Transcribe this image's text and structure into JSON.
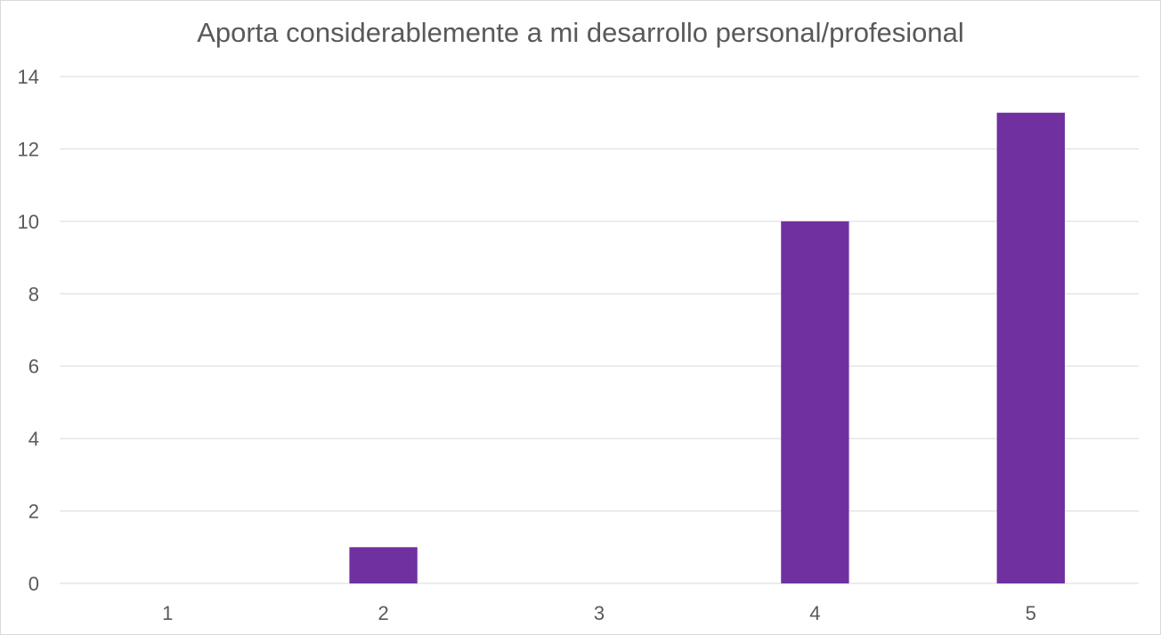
{
  "chart_data": {
    "type": "bar",
    "title": "Aporta considerablemente a mi desarrollo personal/profesional",
    "xlabel": "",
    "ylabel": "",
    "categories": [
      "1",
      "2",
      "3",
      "4",
      "5"
    ],
    "values": [
      0,
      1,
      0,
      10,
      13
    ],
    "ylim": [
      0,
      14
    ],
    "yticks": [
      "0",
      "2",
      "4",
      "6",
      "8",
      "10",
      "12",
      "14"
    ],
    "grid": true,
    "legend": "none",
    "bar_color": "#7030A0",
    "grid_color": "#d9d9d9",
    "text_color": "#595959"
  }
}
